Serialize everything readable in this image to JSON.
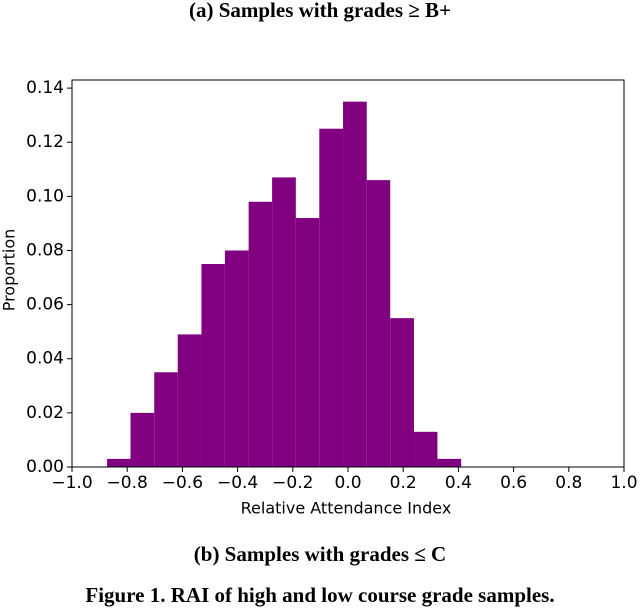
{
  "header": {
    "caption_a": "(a) Samples with grades ≥ B+"
  },
  "chart_data": {
    "type": "histogram",
    "xlabel": "Relative Attendance Index",
    "ylabel": "Proportion",
    "bins": [
      -0.873,
      -0.788,
      -0.702,
      -0.617,
      -0.531,
      -0.446,
      -0.36,
      -0.275,
      -0.189,
      -0.104,
      -0.018,
      0.068,
      0.153,
      0.239,
      0.324,
      0.41
    ],
    "values": [
      0.003,
      0.02,
      0.035,
      0.049,
      0.075,
      0.08,
      0.098,
      0.107,
      0.092,
      0.125,
      0.135,
      0.106,
      0.055,
      0.013,
      0.003
    ],
    "color": "#800080",
    "xlim": [
      -1.0,
      1.0
    ],
    "xticks": [
      {
        "value": -1.0,
        "label": "−1.0"
      },
      {
        "value": -0.8,
        "label": "−0.8"
      },
      {
        "value": -0.6,
        "label": "−0.6"
      },
      {
        "value": -0.4,
        "label": "−0.4"
      },
      {
        "value": -0.2,
        "label": "−0.2"
      },
      {
        "value": 0.0,
        "label": "0.0"
      },
      0.2,
      0.4,
      0.6,
      0.8,
      {
        "value": 1.0,
        "label": "1.0"
      }
    ],
    "ylim": [
      0,
      0.143
    ],
    "yticks": [
      {
        "value": 0,
        "label": "0.00"
      },
      {
        "value": 0.02,
        "label": "0.02"
      },
      {
        "value": 0.04,
        "label": "0.04"
      },
      {
        "value": 0.06,
        "label": "0.06"
      },
      {
        "value": 0.08,
        "label": "0.08"
      },
      {
        "value": 0.1,
        "label": "0.10"
      },
      {
        "value": 0.12,
        "label": "0.12"
      },
      {
        "value": 0.14,
        "label": "0.14"
      }
    ]
  },
  "footer": {
    "caption_b": "(b) Samples with grades ≤ C",
    "figure_caption": "Figure 1. RAI of high and low course grade samples."
  }
}
